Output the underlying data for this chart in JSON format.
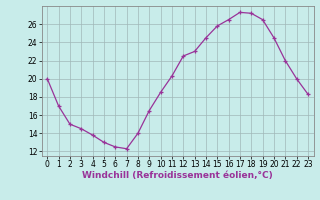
{
  "x": [
    0,
    1,
    2,
    3,
    4,
    5,
    6,
    7,
    8,
    9,
    10,
    11,
    12,
    13,
    14,
    15,
    16,
    17,
    18,
    19,
    20,
    21,
    22,
    23
  ],
  "y": [
    20,
    17,
    15,
    14.5,
    13.8,
    13,
    12.5,
    12.3,
    14,
    16.5,
    18.5,
    20.3,
    22.5,
    23,
    24.5,
    25.8,
    26.5,
    27.3,
    27.2,
    26.5,
    24.5,
    22,
    20,
    18.3
  ],
  "line_color": "#993399",
  "marker": "+",
  "bg_color": "#c8ecea",
  "grid_color": "#a0b8b8",
  "xlabel": "Windchill (Refroidissement éolien,°C)",
  "xlim": [
    -0.5,
    23.5
  ],
  "ylim": [
    11.5,
    28.0
  ],
  "yticks": [
    12,
    14,
    16,
    18,
    20,
    22,
    24,
    26
  ],
  "xticks": [
    0,
    1,
    2,
    3,
    4,
    5,
    6,
    7,
    8,
    9,
    10,
    11,
    12,
    13,
    14,
    15,
    16,
    17,
    18,
    19,
    20,
    21,
    22,
    23
  ],
  "label_fontsize": 6.5,
  "tick_fontsize": 5.5
}
